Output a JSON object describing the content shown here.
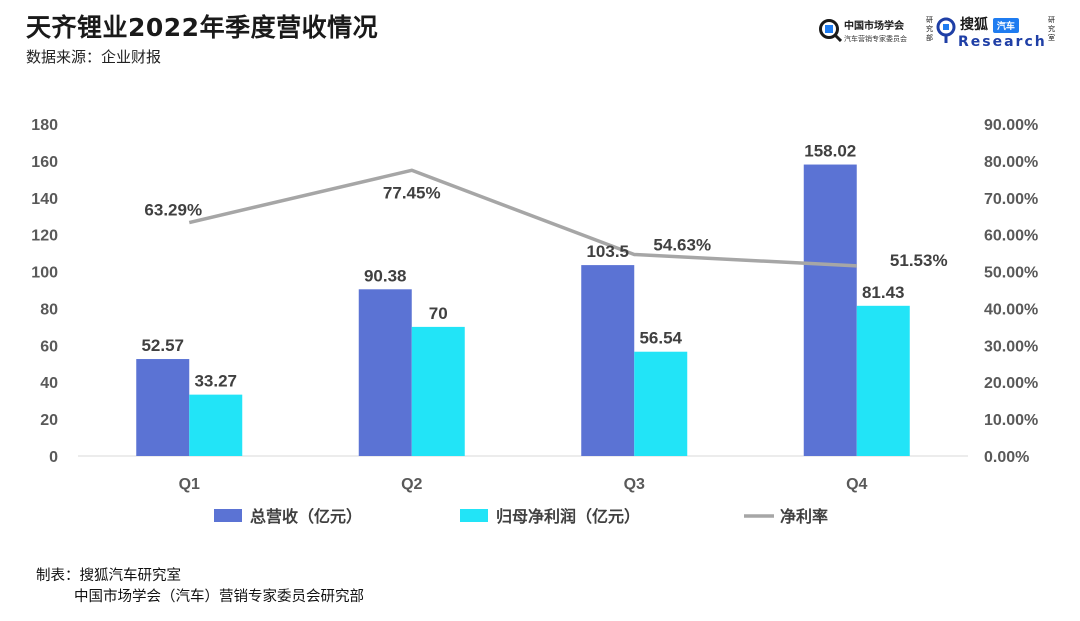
{
  "header": {
    "title": "天齐锂业2022年季度营收情况",
    "source": "数据来源：企业财报"
  },
  "logos": {
    "left_line1": "中国市场学会",
    "left_line2": "汽车营销专家委员会",
    "left_vertical": "研究部",
    "right_brand": "搜狐",
    "right_badge": "汽车",
    "right_research": "Research",
    "right_vertical": "研究室"
  },
  "footer": {
    "line1": "制表：搜狐汽车研究室",
    "line2": "中国市场学会（汽车）营销专家委员会研究部"
  },
  "colors": {
    "revenue": "#5B73D4",
    "profit": "#22E4F7",
    "margin": "#A6A6A6",
    "axis": "#D9D9D9",
    "text": "#595959"
  },
  "chart_data": {
    "type": "bar",
    "title": "天齐锂业2022年季度营收情况",
    "categories": [
      "Q1",
      "Q2",
      "Q3",
      "Q4"
    ],
    "series": [
      {
        "name": "总营收（亿元）",
        "type": "bar",
        "axis": "left",
        "values": [
          52.57,
          90.38,
          103.5,
          158.02
        ],
        "labels": [
          "52.57",
          "90.38",
          "103.5",
          "158.02"
        ]
      },
      {
        "name": "归母净利润（亿元）",
        "type": "bar",
        "axis": "left",
        "values": [
          33.27,
          70,
          56.54,
          81.43
        ],
        "labels": [
          "33.27",
          "70",
          "56.54",
          "81.43"
        ]
      },
      {
        "name": "净利率",
        "type": "line",
        "axis": "right",
        "values": [
          63.29,
          77.45,
          54.63,
          51.53
        ],
        "labels": [
          "63.29%",
          "77.45%",
          "54.63%",
          "51.53%"
        ]
      }
    ],
    "y_left": {
      "min": 0,
      "max": 180,
      "step": 20,
      "ticks": [
        "0",
        "20",
        "40",
        "60",
        "80",
        "100",
        "120",
        "140",
        "160",
        "180"
      ]
    },
    "y_right": {
      "min": 0,
      "max": 90,
      "step": 10,
      "ticks": [
        "0.00%",
        "10.00%",
        "20.00%",
        "30.00%",
        "40.00%",
        "50.00%",
        "60.00%",
        "70.00%",
        "80.00%",
        "90.00%"
      ]
    },
    "grid": false,
    "legend_position": "bottom"
  }
}
